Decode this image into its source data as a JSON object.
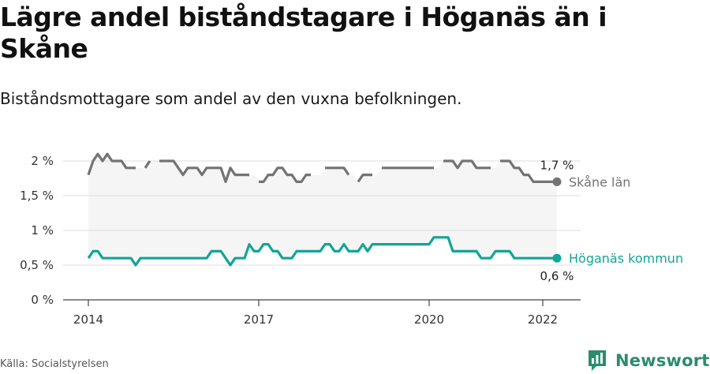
{
  "title": "Lägre andel biståndstagare i Höganäs än i Skåne",
  "subtitle": "Biståndsmottagare som andel av den vuxna befolkningen.",
  "source": "Källa: Socialstyrelsen",
  "brand": "Newsworthy",
  "colors": {
    "lan": "#737373",
    "kommun": "#12a594",
    "band": "#f5f5f5",
    "grid": "#dddddd",
    "axis": "#444444",
    "brand": "#2b8c6e"
  },
  "chart_data": {
    "type": "line",
    "x_label_ticks": [
      "2014",
      "2017",
      "2020",
      "2022"
    ],
    "x_tick_years": [
      2014,
      2017,
      2020,
      2022
    ],
    "y_ticks": [
      0,
      0.5,
      1,
      1.5,
      2
    ],
    "y_tick_labels": [
      "0 %",
      "0,5 %",
      "1 %",
      "1,5 %",
      "2 %"
    ],
    "ylim": [
      0,
      2.2
    ],
    "start": "2014-01",
    "end": "2022-03",
    "series": [
      {
        "name": "Skåne län",
        "key": "lan",
        "end_label": "1,7 %",
        "values": [
          1.8,
          2.0,
          2.1,
          2.0,
          2.1,
          2.0,
          2.0,
          2.0,
          1.9,
          1.9,
          1.9,
          null,
          1.9,
          2.0,
          null,
          2.0,
          2.0,
          2.0,
          2.0,
          1.9,
          1.8,
          1.9,
          1.9,
          1.9,
          1.8,
          1.9,
          1.9,
          1.9,
          1.9,
          1.7,
          1.9,
          1.8,
          1.8,
          1.8,
          1.8,
          null,
          1.7,
          1.7,
          1.8,
          1.8,
          1.9,
          1.9,
          1.8,
          1.8,
          1.7,
          1.7,
          1.8,
          1.8,
          null,
          null,
          1.9,
          1.9,
          1.9,
          1.9,
          1.9,
          1.8,
          null,
          1.7,
          1.8,
          1.8,
          1.8,
          null,
          1.9,
          1.9,
          1.9,
          1.9,
          1.9,
          1.9,
          1.9,
          1.9,
          1.9,
          1.9,
          1.9,
          1.9,
          null,
          2.0,
          2.0,
          2.0,
          1.9,
          2.0,
          2.0,
          2.0,
          1.9,
          1.9,
          1.9,
          1.9,
          null,
          2.0,
          2.0,
          2.0,
          1.9,
          1.9,
          1.8,
          1.8,
          1.7,
          1.7,
          1.7,
          1.7,
          1.7,
          1.7
        ]
      },
      {
        "name": "Höganäs kommun",
        "key": "kommun",
        "end_label": "0,6 %",
        "values": [
          0.6,
          0.7,
          0.7,
          0.6,
          0.6,
          0.6,
          0.6,
          0.6,
          0.6,
          0.6,
          0.5,
          0.6,
          0.6,
          0.6,
          0.6,
          0.6,
          0.6,
          0.6,
          0.6,
          0.6,
          0.6,
          0.6,
          0.6,
          0.6,
          0.6,
          0.6,
          0.7,
          0.7,
          0.7,
          0.6,
          0.5,
          0.6,
          0.6,
          0.6,
          0.8,
          0.7,
          0.7,
          0.8,
          0.8,
          0.7,
          0.7,
          0.6,
          0.6,
          0.6,
          0.7,
          0.7,
          0.7,
          0.7,
          0.7,
          0.7,
          0.8,
          0.8,
          0.7,
          0.7,
          0.8,
          0.7,
          0.7,
          0.7,
          0.8,
          0.7,
          0.8,
          0.8,
          0.8,
          0.8,
          0.8,
          0.8,
          0.8,
          0.8,
          0.8,
          0.8,
          0.8,
          0.8,
          0.8,
          0.9,
          0.9,
          0.9,
          0.9,
          0.7,
          0.7,
          0.7,
          0.7,
          0.7,
          0.7,
          0.6,
          0.6,
          0.6,
          0.7,
          0.7,
          0.7,
          0.7,
          0.6,
          0.6,
          0.6,
          0.6,
          0.6,
          0.6,
          0.6,
          0.6,
          0.6,
          0.6
        ]
      }
    ]
  }
}
